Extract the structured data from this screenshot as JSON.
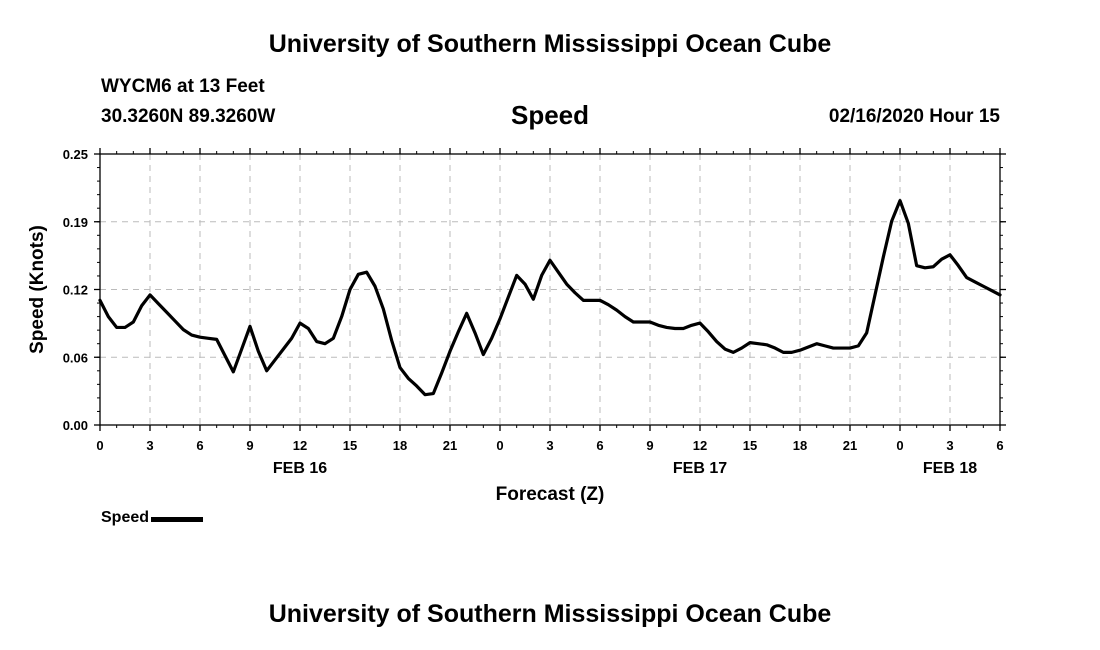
{
  "header": {
    "title": "University of Southern Mississippi Ocean Cube",
    "station": "WYCM6 at 13 Feet",
    "coordinates": "30.3260N 89.3260W",
    "timestamp": "02/16/2020 Hour 15"
  },
  "footer": {
    "title": "University of Southern Mississippi Ocean Cube"
  },
  "colors": {
    "line": "#000000",
    "grid": "#bbbbbb",
    "background": "#ffffff"
  },
  "chart_data": {
    "type": "line",
    "title": "Speed",
    "xlabel": "Forecast (Z)",
    "ylabel": "Speed (Knots)",
    "ylim": [
      0.0,
      0.25
    ],
    "xlim": [
      0,
      54
    ],
    "yticks": [
      "0.00",
      "0.06",
      "0.12",
      "0.19",
      "0.25"
    ],
    "ytick_values": [
      0.0,
      0.0625,
      0.125,
      0.1875,
      0.25
    ],
    "xticks": [
      {
        "h": 0,
        "label": "0"
      },
      {
        "h": 3,
        "label": "3"
      },
      {
        "h": 6,
        "label": "6"
      },
      {
        "h": 9,
        "label": "9"
      },
      {
        "h": 12,
        "label": "12"
      },
      {
        "h": 15,
        "label": "15"
      },
      {
        "h": 18,
        "label": "18"
      },
      {
        "h": 21,
        "label": "21"
      },
      {
        "h": 24,
        "label": "0"
      },
      {
        "h": 27,
        "label": "3"
      },
      {
        "h": 30,
        "label": "6"
      },
      {
        "h": 33,
        "label": "9"
      },
      {
        "h": 36,
        "label": "12"
      },
      {
        "h": 39,
        "label": "15"
      },
      {
        "h": 42,
        "label": "18"
      },
      {
        "h": 45,
        "label": "21"
      },
      {
        "h": 48,
        "label": "0"
      },
      {
        "h": 51,
        "label": "3"
      },
      {
        "h": 54,
        "label": "6"
      }
    ],
    "day_labels": [
      {
        "h": 12,
        "label": "FEB 16"
      },
      {
        "h": 36,
        "label": "FEB 17"
      },
      {
        "h": 51,
        "label": "FEB 18"
      }
    ],
    "grid": true,
    "legend": {
      "label": "Speed",
      "position": "bottom-left"
    },
    "series": [
      {
        "name": "Speed",
        "x": [
          0,
          0.5,
          1,
          1.5,
          2,
          2.5,
          3,
          3.5,
          4,
          4.5,
          5,
          5.5,
          6,
          6.5,
          7,
          7.5,
          8,
          8.5,
          9,
          9.5,
          10,
          10.5,
          11,
          11.5,
          12,
          12.5,
          13,
          13.5,
          14,
          14.5,
          15,
          15.5,
          16,
          16.5,
          17,
          17.5,
          18,
          18.5,
          19,
          19.5,
          20,
          20.5,
          21,
          21.5,
          22,
          22.5,
          23,
          23.5,
          24,
          24.5,
          25,
          25.5,
          26,
          26.5,
          27,
          27.5,
          28,
          28.5,
          29,
          29.5,
          30,
          30.5,
          31,
          31.5,
          32,
          32.5,
          33,
          33.5,
          34,
          34.5,
          35,
          35.5,
          36,
          36.5,
          37,
          37.5,
          38,
          38.5,
          39,
          39.5,
          40,
          40.5,
          41,
          41.5,
          42,
          42.5,
          43,
          43.5,
          44,
          44.5,
          45,
          45.5,
          46,
          46.5,
          47,
          47.5,
          48,
          48.5,
          49,
          49.5,
          50,
          50.5,
          51,
          51.5,
          52,
          52.5,
          53,
          53.5,
          54
        ],
        "values": [
          0.115,
          0.1,
          0.09,
          0.09,
          0.095,
          0.11,
          0.12,
          0.112,
          0.104,
          0.096,
          0.088,
          0.083,
          0.081,
          0.08,
          0.079,
          0.064,
          0.049,
          0.07,
          0.091,
          0.068,
          0.05,
          0.06,
          0.07,
          0.08,
          0.094,
          0.089,
          0.077,
          0.075,
          0.08,
          0.1,
          0.125,
          0.139,
          0.141,
          0.128,
          0.107,
          0.078,
          0.053,
          0.043,
          0.036,
          0.028,
          0.029,
          0.048,
          0.068,
          0.086,
          0.103,
          0.085,
          0.065,
          0.08,
          0.098,
          0.118,
          0.138,
          0.13,
          0.116,
          0.138,
          0.152,
          0.141,
          0.13,
          0.122,
          0.115,
          0.115,
          0.115,
          0.111,
          0.106,
          0.1,
          0.095,
          0.095,
          0.095,
          0.092,
          0.09,
          0.089,
          0.089,
          0.092,
          0.094,
          0.086,
          0.077,
          0.07,
          0.067,
          0.071,
          0.076,
          0.075,
          0.074,
          0.071,
          0.067,
          0.067,
          0.069,
          0.072,
          0.075,
          0.073,
          0.071,
          0.071,
          0.071,
          0.073,
          0.085,
          0.12,
          0.155,
          0.188,
          0.207,
          0.186,
          0.147,
          0.145,
          0.146,
          0.153,
          0.157,
          0.147,
          0.136,
          0.132,
          0.128,
          0.124,
          0.12
        ]
      }
    ]
  }
}
